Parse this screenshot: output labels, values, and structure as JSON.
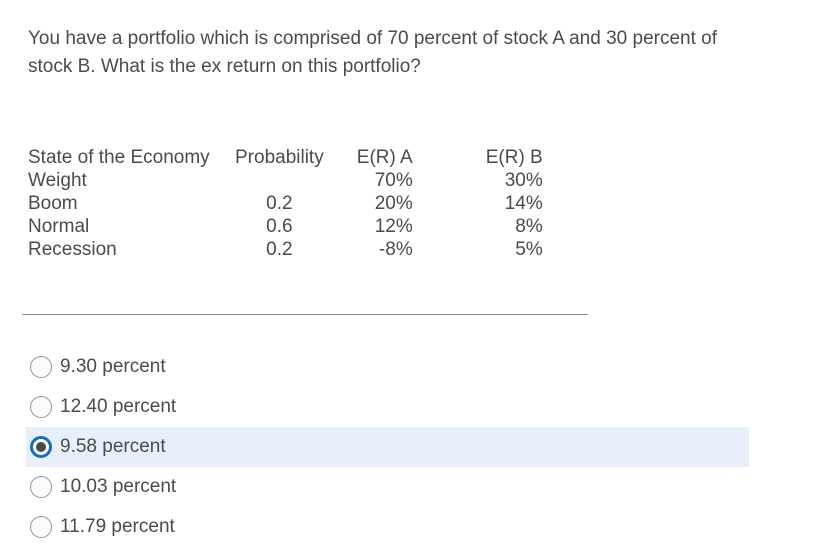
{
  "question": {
    "text": "You have a portfolio which is comprised of 70 percent of stock A and 30 percent of stock B. What is the ex return on this portfolio?"
  },
  "table": {
    "headers": {
      "state": "State of the Economy",
      "probability": "Probability",
      "er_a": "E(R) A",
      "er_b": "E(R) B"
    },
    "rows": [
      {
        "state": "Weight",
        "probability": "",
        "er_a": "70%",
        "er_b": "30%"
      },
      {
        "state": "Boom",
        "probability": "0.2",
        "er_a": "20%",
        "er_b": "14%"
      },
      {
        "state": "Normal",
        "probability": "0.6",
        "er_a": "12%",
        "er_b": "8%"
      },
      {
        "state": "Recession",
        "probability": "0.2",
        "er_a": "-8%",
        "er_b": "5%"
      }
    ]
  },
  "options": {
    "selected_index": 2,
    "items": [
      {
        "label": "9.30 percent",
        "selected": false
      },
      {
        "label": "12.40 percent",
        "selected": false
      },
      {
        "label": "9.58 percent",
        "selected": true
      },
      {
        "label": "10.03 percent",
        "selected": false
      },
      {
        "label": "11.79 percent",
        "selected": false
      }
    ]
  },
  "colors": {
    "text": "#494c4e",
    "selected_row_bg": "#e7f0fa",
    "radio_selected_ring": "#1a6cbe",
    "radio_dot": "#47494b",
    "radio_unselected_border": "#8f959b",
    "divider": "#8f8f8f"
  }
}
